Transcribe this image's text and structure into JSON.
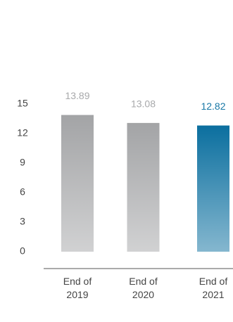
{
  "chart_data": {
    "type": "bar",
    "categories": [
      "End of\n2019",
      "End of\n2020",
      "End of\n2021"
    ],
    "values": [
      13.89,
      13.08,
      12.82
    ],
    "colors": [
      "#a3a4a6",
      "#a3a4a6",
      "#0b6f9f"
    ],
    "label_colors": [
      "#a8a9ab",
      "#a8a9ab",
      "#1878a6"
    ],
    "ylim": [
      0,
      15
    ],
    "yticks": [
      0,
      3,
      6,
      9,
      12,
      15
    ],
    "grid": false
  }
}
